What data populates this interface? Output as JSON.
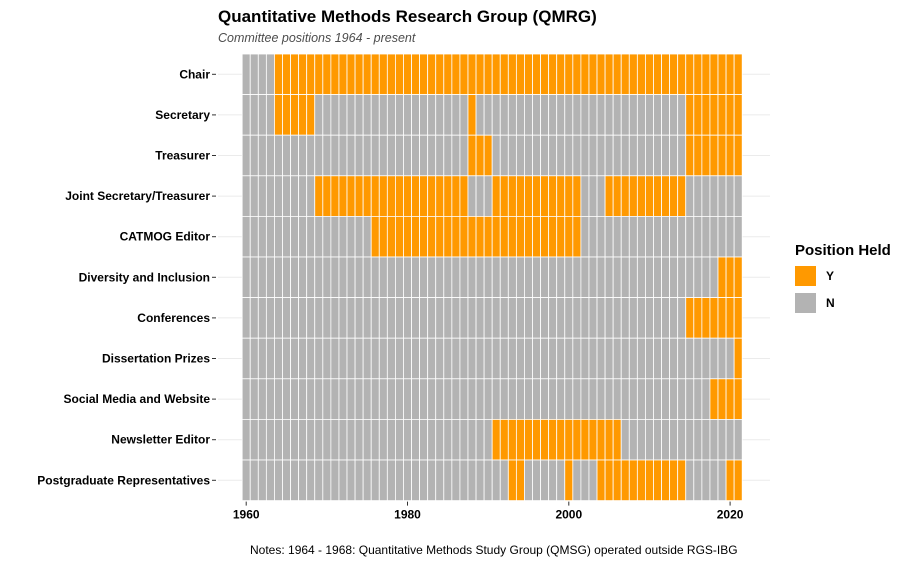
{
  "chart_data": {
    "type": "heatmap",
    "title": "Quantitative Methods Research Group (QMRG)",
    "subtitle": "Committee positions 1964 - present",
    "note": "Notes: 1964 - 1968: Quantitative Methods Study Group (QMSG) operated outside RGS-IBG",
    "x_range": [
      1960,
      2021
    ],
    "xlim": [
      1959.5,
      2021.5
    ],
    "x_ticks": [
      1960,
      1980,
      2000,
      2020
    ],
    "grid": true,
    "legend": {
      "title": "Position Held",
      "position": "right",
      "entries": [
        {
          "label": "Y",
          "color": "#FF9900"
        },
        {
          "label": "N",
          "color": "#B3B3B3"
        }
      ]
    },
    "rows": [
      {
        "label": "Chair",
        "held": [
          [
            1964,
            2021
          ]
        ]
      },
      {
        "label": "Secretary",
        "held": [
          [
            1964,
            1968
          ],
          [
            1988,
            1988
          ],
          [
            2015,
            2021
          ]
        ]
      },
      {
        "label": "Treasurer",
        "held": [
          [
            1988,
            1990
          ],
          [
            2015,
            2021
          ]
        ]
      },
      {
        "label": "Joint Secretary/Treasurer",
        "held": [
          [
            1969,
            1987
          ],
          [
            1991,
            2001
          ],
          [
            2005,
            2014
          ]
        ]
      },
      {
        "label": "CATMOG Editor",
        "held": [
          [
            1976,
            2001
          ]
        ]
      },
      {
        "label": "Diversity and Inclusion",
        "held": [
          [
            2019,
            2021
          ]
        ]
      },
      {
        "label": "Conferences",
        "held": [
          [
            2015,
            2021
          ]
        ]
      },
      {
        "label": "Dissertation Prizes",
        "held": [
          [
            2021,
            2021
          ]
        ]
      },
      {
        "label": "Social Media and Website",
        "held": [
          [
            2018,
            2021
          ]
        ]
      },
      {
        "label": "Newsletter Editor",
        "held": [
          [
            1991,
            2006
          ]
        ]
      },
      {
        "label": "Postgraduate Representatives",
        "held": [
          [
            1993,
            1994
          ],
          [
            2000,
            2000
          ],
          [
            2004,
            2014
          ],
          [
            2020,
            2021
          ]
        ]
      }
    ]
  }
}
